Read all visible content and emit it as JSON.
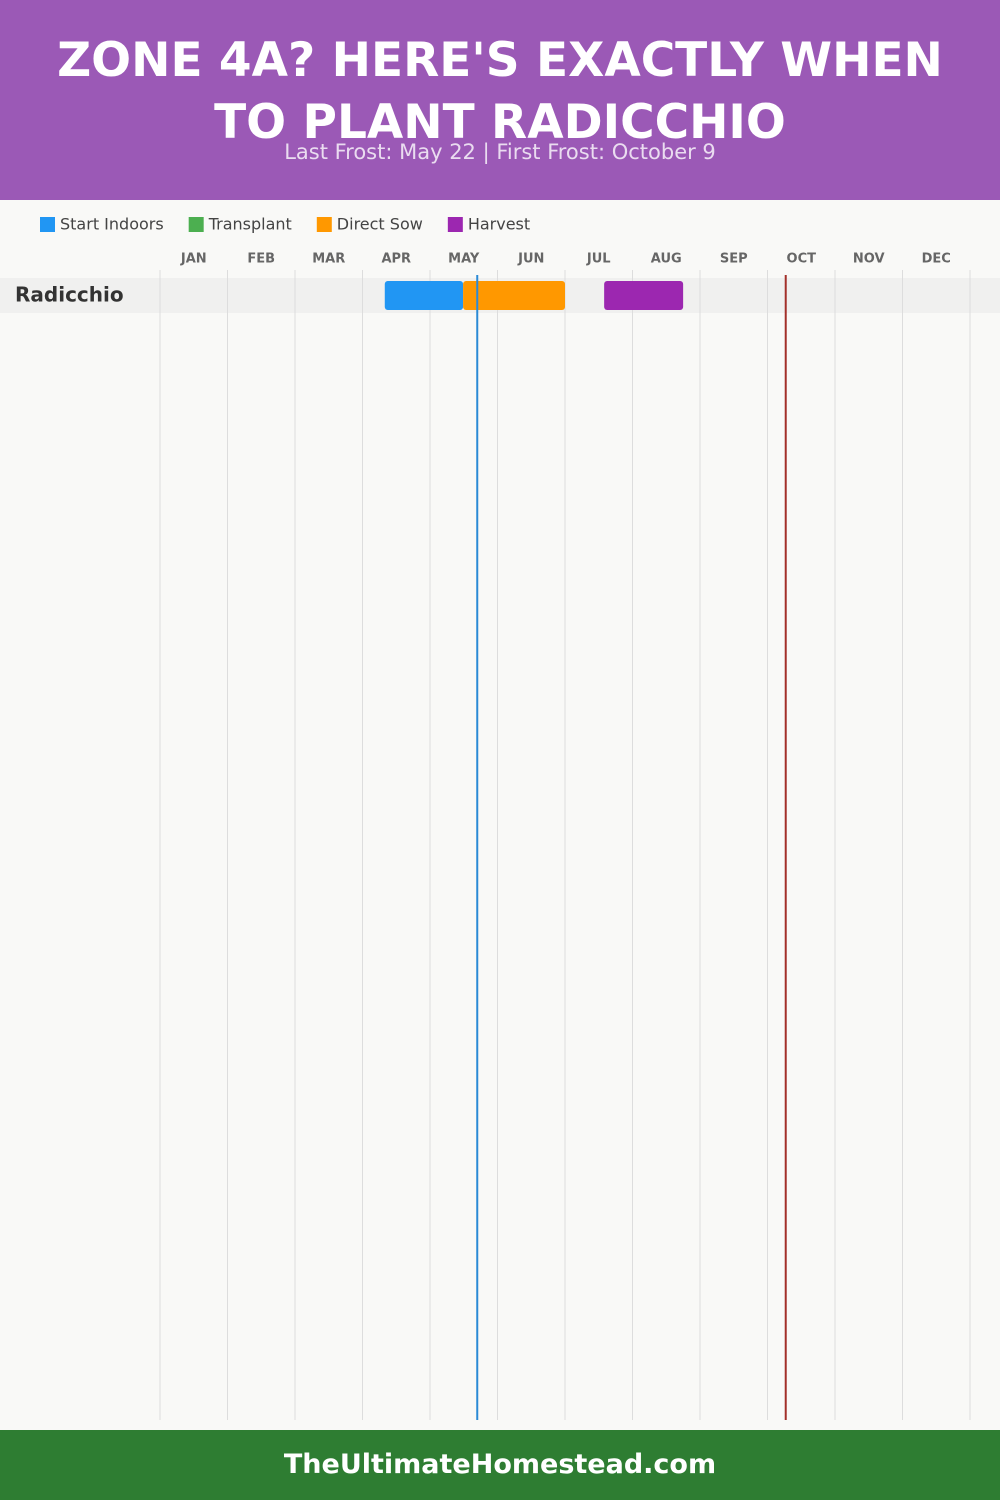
{
  "chart_data": {
    "type": "gantt",
    "title": "ZONE 4A? HERE'S EXACTLY WHEN TO PLANT RADICCHIO",
    "subtitle": "Last Frost: May 22 | First Frost: October 9",
    "categories": [
      "JAN",
      "FEB",
      "MAR",
      "APR",
      "MAY",
      "JUN",
      "JUL",
      "AUG",
      "SEP",
      "OCT",
      "NOV",
      "DEC"
    ],
    "xlim": [
      0,
      12
    ],
    "series": [
      {
        "name": "Start Indoors",
        "color": "#2196f3"
      },
      {
        "name": "Transplant",
        "color": "#4caf50"
      },
      {
        "name": "Direct Sow",
        "color": "#ff9800"
      },
      {
        "name": "Harvest",
        "color": "#9c27b0"
      }
    ],
    "rows": [
      {
        "name": "Radicchio",
        "bars": [
          {
            "series": 0,
            "start": 3.33,
            "end": 4.49
          },
          {
            "series": 2,
            "start": 4.49,
            "end": 6.0
          },
          {
            "series": 3,
            "start": 6.58,
            "end": 7.75
          }
        ]
      }
    ],
    "markers": [
      {
        "value": 4.7,
        "color": "#2b8ad6"
      },
      {
        "value": 9.27,
        "color": "#a3302a"
      }
    ]
  },
  "footer": "TheUltimateHomestead.com"
}
